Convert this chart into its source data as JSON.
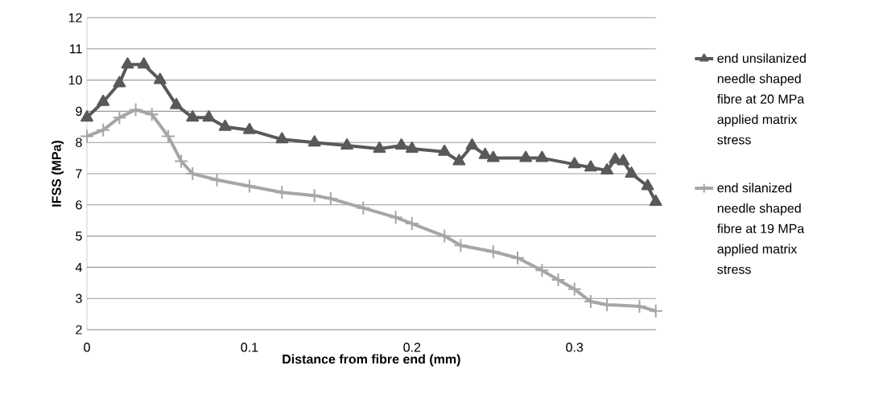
{
  "chart_data": {
    "type": "line",
    "xlabel": "Distance from fibre end (mm)",
    "ylabel": "IFSS (MPa)",
    "xlim": [
      0,
      0.35
    ],
    "xticks": [
      0,
      0.1,
      0.2,
      0.3
    ],
    "ylim": [
      2,
      12
    ],
    "yticks": [
      2,
      3,
      4,
      5,
      6,
      7,
      8,
      9,
      10,
      11,
      12
    ],
    "grid": "y",
    "legend": "right",
    "line_style": "solid",
    "series": [
      {
        "name": "end unsilanized needle shaped fibre at 20 MPa applied matrix stress",
        "color": "#595959",
        "marker": "triangle",
        "x": [
          0,
          0.01,
          0.02,
          0.025,
          0.035,
          0.045,
          0.055,
          0.065,
          0.075,
          0.085,
          0.1,
          0.12,
          0.14,
          0.16,
          0.18,
          0.1935,
          0.2,
          0.22,
          0.229,
          0.237,
          0.245,
          0.25,
          0.27,
          0.28,
          0.3,
          0.31,
          0.32,
          0.325,
          0.33,
          0.335,
          0.345,
          0.35
        ],
        "values": [
          8.8,
          9.3,
          9.9,
          10.5,
          10.5,
          10.0,
          9.2,
          8.8,
          8.8,
          8.5,
          8.4,
          8.1,
          8.0,
          7.9,
          7.8,
          7.9,
          7.8,
          7.7,
          7.4,
          7.9,
          7.6,
          7.5,
          7.5,
          7.5,
          7.3,
          7.2,
          7.1,
          7.45,
          7.4,
          7.0,
          6.6,
          6.1
        ]
      },
      {
        "name": "end silanized needle shaped fibre at 19 MPa applied matrix stress",
        "color": "#a6a6a6",
        "marker": "cross",
        "x": [
          0,
          0.01,
          0.02,
          0.03,
          0.04,
          0.05,
          0.058,
          0.065,
          0.08,
          0.1,
          0.12,
          0.14,
          0.15,
          0.17,
          0.19,
          0.2,
          0.22,
          0.23,
          0.25,
          0.265,
          0.28,
          0.29,
          0.3,
          0.31,
          0.32,
          0.34,
          0.35
        ],
        "values": [
          8.2,
          8.4,
          8.8,
          9.05,
          8.9,
          8.2,
          7.4,
          7.0,
          6.8,
          6.6,
          6.4,
          6.3,
          6.2,
          5.9,
          5.6,
          5.4,
          5.0,
          4.7,
          4.5,
          4.3,
          3.9,
          3.6,
          3.3,
          2.9,
          2.8,
          2.75,
          2.6
        ]
      }
    ]
  }
}
